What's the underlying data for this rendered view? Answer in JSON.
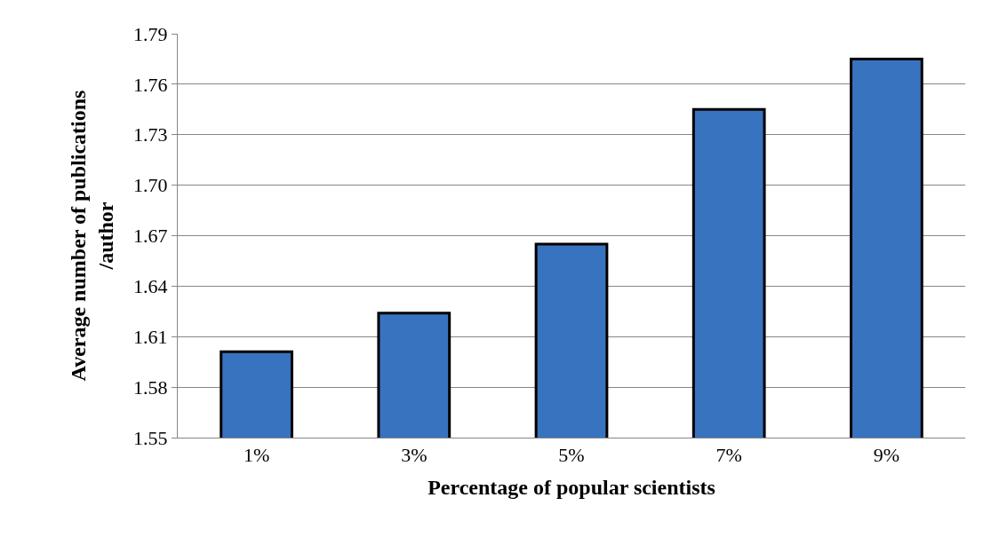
{
  "chart_data": {
    "type": "bar",
    "xlabel": "Percentage of popular scientists",
    "ylabel": "Average number of publications\n/author",
    "categories": [
      "1%",
      "3%",
      "5%",
      "7%",
      "9%"
    ],
    "values": [
      1.601,
      1.624,
      1.665,
      1.745,
      1.775
    ],
    "color": "#3873c0",
    "ylim": [
      1.55,
      1.79
    ],
    "yticks": [
      {
        "value": 1.55,
        "label": "1.55"
      },
      {
        "value": 1.58,
        "label": "1.58"
      },
      {
        "value": 1.61,
        "label": "1.61"
      },
      {
        "value": 1.64,
        "label": "1.64"
      },
      {
        "value": 1.67,
        "label": "1.67"
      },
      {
        "value": 1.7,
        "label": "1.70"
      },
      {
        "value": 1.73,
        "label": "1.73"
      },
      {
        "value": 1.76,
        "label": "1.76"
      },
      {
        "value": 1.79,
        "label": "1.79"
      }
    ],
    "grid": "y"
  }
}
